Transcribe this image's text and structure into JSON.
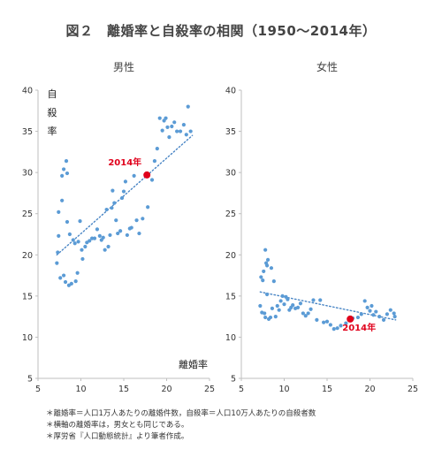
{
  "title": "図２　離婚率と自殺率の相関（1950〜2014年）",
  "notes": [
    "＊離婚率＝人口1万人あたりの離婚件数，自殺率＝人口10万人あたりの自殺者数",
    "＊横軸の離婚率は，男女とも同じである。",
    "＊厚労省『人口動態統計』より筆者作成。"
  ],
  "colors": {
    "points": "#5b9bd5",
    "trend": "#4a86c5",
    "highlight": "#e0001b",
    "axis": "#bfbfbf",
    "text": "#333333"
  },
  "chart_data": [
    {
      "type": "scatter",
      "title": "男性",
      "ylabel": "自殺率",
      "xlabel": "離婚率",
      "xlim": [
        5,
        25
      ],
      "ylim": [
        5,
        40
      ],
      "xticks": [
        5,
        10,
        15,
        20,
        25
      ],
      "yticks": [
        5,
        10,
        15,
        20,
        25,
        30,
        35,
        40
      ],
      "grid": false,
      "trendline": {
        "style": "dotted",
        "from": [
          7.2,
          20.0
        ],
        "to": [
          23.0,
          34.5
        ]
      },
      "highlight": {
        "label": "2014年",
        "x": 17.7,
        "y": 29.7
      },
      "points": [
        [
          7.2,
          19.0
        ],
        [
          7.3,
          20.3
        ],
        [
          7.4,
          22.3
        ],
        [
          7.4,
          25.2
        ],
        [
          7.6,
          17.2
        ],
        [
          7.8,
          26.6
        ],
        [
          7.8,
          29.6
        ],
        [
          8.0,
          30.4
        ],
        [
          8.0,
          17.5
        ],
        [
          8.2,
          16.7
        ],
        [
          8.3,
          31.4
        ],
        [
          8.4,
          29.9
        ],
        [
          8.4,
          24.0
        ],
        [
          8.6,
          16.3
        ],
        [
          8.7,
          22.5
        ],
        [
          8.9,
          16.5
        ],
        [
          9.1,
          21.8
        ],
        [
          9.3,
          21.4
        ],
        [
          9.4,
          16.8
        ],
        [
          9.6,
          17.8
        ],
        [
          9.7,
          21.6
        ],
        [
          9.9,
          24.1
        ],
        [
          10.1,
          20.6
        ],
        [
          10.2,
          19.5
        ],
        [
          10.5,
          21.0
        ],
        [
          10.7,
          21.5
        ],
        [
          11.0,
          21.7
        ],
        [
          11.3,
          22.0
        ],
        [
          11.6,
          22.0
        ],
        [
          11.9,
          23.1
        ],
        [
          12.2,
          22.3
        ],
        [
          12.4,
          21.8
        ],
        [
          12.6,
          22.1
        ],
        [
          12.8,
          20.6
        ],
        [
          13.0,
          25.5
        ],
        [
          13.2,
          21.0
        ],
        [
          13.4,
          22.4
        ],
        [
          13.6,
          25.7
        ],
        [
          13.7,
          27.8
        ],
        [
          13.9,
          26.3
        ],
        [
          14.1,
          24.2
        ],
        [
          14.3,
          22.6
        ],
        [
          14.6,
          22.9
        ],
        [
          14.8,
          26.9
        ],
        [
          15.0,
          27.7
        ],
        [
          15.2,
          28.9
        ],
        [
          15.4,
          22.4
        ],
        [
          15.7,
          23.2
        ],
        [
          15.9,
          23.3
        ],
        [
          16.2,
          29.6
        ],
        [
          16.5,
          24.2
        ],
        [
          16.8,
          22.6
        ],
        [
          17.2,
          24.4
        ],
        [
          17.8,
          25.8
        ],
        [
          18.3,
          29.1
        ],
        [
          18.6,
          31.4
        ],
        [
          18.9,
          32.9
        ],
        [
          19.2,
          36.6
        ],
        [
          19.5,
          35.1
        ],
        [
          19.7,
          36.3
        ],
        [
          19.9,
          36.6
        ],
        [
          20.1,
          35.5
        ],
        [
          20.3,
          34.3
        ],
        [
          20.6,
          35.6
        ],
        [
          20.9,
          36.1
        ],
        [
          21.2,
          35.0
        ],
        [
          21.6,
          35.0
        ],
        [
          22.0,
          35.8
        ],
        [
          22.3,
          34.6
        ],
        [
          22.8,
          35.0
        ],
        [
          22.5,
          38.0
        ]
      ]
    },
    {
      "type": "scatter",
      "title": "女性",
      "xlim": [
        5,
        25
      ],
      "ylim": [
        5,
        40
      ],
      "xticks": [
        5,
        10,
        15,
        20,
        25
      ],
      "yticks": [
        5,
        10,
        15,
        20,
        25,
        30,
        35,
        40
      ],
      "grid": false,
      "trendline": {
        "style": "dotted",
        "from": [
          7.2,
          15.5
        ],
        "to": [
          23.0,
          12.1
        ]
      },
      "highlight": {
        "label": "2014年",
        "x": 17.7,
        "y": 12.2
      },
      "points": [
        [
          7.2,
          13.8
        ],
        [
          7.3,
          17.3
        ],
        [
          7.4,
          13.0
        ],
        [
          7.5,
          16.9
        ],
        [
          7.6,
          18.0
        ],
        [
          7.7,
          12.9
        ],
        [
          7.8,
          12.4
        ],
        [
          7.8,
          20.6
        ],
        [
          7.9,
          19.0
        ],
        [
          8.0,
          18.7
        ],
        [
          8.0,
          15.2
        ],
        [
          8.1,
          19.4
        ],
        [
          8.2,
          12.2
        ],
        [
          8.4,
          12.4
        ],
        [
          8.5,
          18.4
        ],
        [
          8.6,
          13.5
        ],
        [
          8.8,
          16.8
        ],
        [
          9.0,
          12.5
        ],
        [
          9.2,
          13.8
        ],
        [
          9.4,
          13.3
        ],
        [
          9.6,
          14.4
        ],
        [
          9.8,
          15.0
        ],
        [
          10.0,
          14.0
        ],
        [
          10.2,
          14.9
        ],
        [
          10.4,
          14.6
        ],
        [
          10.6,
          13.3
        ],
        [
          10.8,
          13.6
        ],
        [
          11.0,
          13.9
        ],
        [
          11.3,
          13.5
        ],
        [
          11.6,
          13.6
        ],
        [
          11.9,
          14.1
        ],
        [
          12.2,
          12.9
        ],
        [
          12.5,
          12.6
        ],
        [
          12.8,
          12.9
        ],
        [
          13.1,
          13.4
        ],
        [
          13.4,
          14.5
        ],
        [
          13.8,
          12.1
        ],
        [
          14.2,
          14.5
        ],
        [
          14.6,
          11.8
        ],
        [
          15.0,
          11.9
        ],
        [
          15.4,
          11.5
        ],
        [
          15.8,
          11.0
        ],
        [
          16.2,
          11.1
        ],
        [
          16.6,
          11.4
        ],
        [
          17.2,
          11.7
        ],
        [
          18.0,
          12.3
        ],
        [
          18.6,
          12.4
        ],
        [
          19.0,
          12.8
        ],
        [
          19.4,
          14.4
        ],
        [
          19.7,
          13.6
        ],
        [
          20.0,
          13.2
        ],
        [
          20.2,
          13.8
        ],
        [
          20.4,
          12.7
        ],
        [
          20.7,
          13.1
        ],
        [
          21.1,
          12.5
        ],
        [
          21.6,
          12.1
        ],
        [
          22.0,
          12.8
        ],
        [
          22.4,
          13.3
        ],
        [
          22.8,
          12.9
        ],
        [
          22.9,
          12.5
        ]
      ]
    }
  ]
}
